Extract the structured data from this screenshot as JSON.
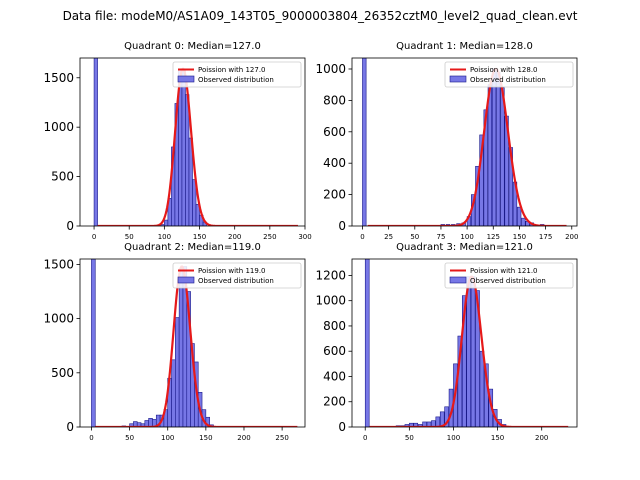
{
  "figure": {
    "title": "Data file: modeM0/AS1A09_143T05_9000003804_26352cztM0_level2_quad_clean.evt"
  },
  "colors": {
    "bar_fill": "#7777e6",
    "bar_edge": "#1a1a8a",
    "fit_line": "#e61919",
    "axes": "#000000"
  },
  "chart_data": [
    {
      "type": "bar",
      "title": "Quadrant 0: Median=127.0",
      "median": 127.0,
      "xlim": [
        -20,
        300
      ],
      "ylim": [
        0,
        1700
      ],
      "xticks": [
        0,
        50,
        100,
        150,
        200,
        250,
        300
      ],
      "yticks": [
        0,
        500,
        1000,
        1500
      ],
      "bin_width": 5,
      "legend": [
        "Poission with 127.0",
        "Observed distribution"
      ],
      "bins": [
        [
          0,
          1700
        ],
        [
          95,
          15
        ],
        [
          100,
          60
        ],
        [
          105,
          280
        ],
        [
          110,
          800
        ],
        [
          115,
          1240
        ],
        [
          120,
          1580
        ],
        [
          125,
          1590
        ],
        [
          130,
          1330
        ],
        [
          135,
          890
        ],
        [
          140,
          470
        ],
        [
          145,
          220
        ],
        [
          150,
          110
        ],
        [
          155,
          40
        ]
      ]
    },
    {
      "type": "bar",
      "title": "Quadrant 1: Median=128.0",
      "median": 128.0,
      "xlim": [
        -10,
        205
      ],
      "ylim": [
        0,
        1070
      ],
      "xticks": [
        0,
        25,
        50,
        75,
        100,
        125,
        150,
        175,
        200
      ],
      "yticks": [
        0,
        200,
        400,
        600,
        800,
        1000
      ],
      "bin_width": 3.5,
      "legend": [
        "Poission with 128.0",
        "Observed distribution"
      ],
      "bins": [
        [
          0,
          1070
        ],
        [
          75,
          10
        ],
        [
          80,
          10
        ],
        [
          85,
          10
        ],
        [
          90,
          15
        ],
        [
          95,
          20
        ],
        [
          100,
          60
        ],
        [
          104,
          200
        ],
        [
          108,
          380
        ],
        [
          112,
          580
        ],
        [
          116,
          740
        ],
        [
          120,
          900
        ],
        [
          124,
          1000
        ],
        [
          128,
          980
        ],
        [
          132,
          880
        ],
        [
          136,
          700
        ],
        [
          140,
          500
        ],
        [
          144,
          280
        ],
        [
          148,
          120
        ],
        [
          152,
          50
        ],
        [
          156,
          30
        ],
        [
          160,
          20
        ],
        [
          170,
          10
        ]
      ]
    },
    {
      "type": "bar",
      "title": "Quadrant 2: Median=119.0",
      "median": 119.0,
      "xlim": [
        -15,
        280
      ],
      "ylim": [
        0,
        1550
      ],
      "xticks": [
        0,
        50,
        100,
        150,
        200,
        250
      ],
      "yticks": [
        0,
        500,
        1000,
        1500
      ],
      "bin_width": 5,
      "legend": [
        "Poission with 119.0",
        "Observed distribution"
      ],
      "bins": [
        [
          0,
          1550
        ],
        [
          40,
          10
        ],
        [
          50,
          30
        ],
        [
          55,
          50
        ],
        [
          60,
          40
        ],
        [
          65,
          30
        ],
        [
          70,
          60
        ],
        [
          75,
          80
        ],
        [
          80,
          70
        ],
        [
          85,
          110
        ],
        [
          90,
          110
        ],
        [
          95,
          160
        ],
        [
          100,
          450
        ],
        [
          105,
          620
        ],
        [
          110,
          1010
        ],
        [
          115,
          1460
        ],
        [
          120,
          1480
        ],
        [
          125,
          1250
        ],
        [
          130,
          770
        ],
        [
          135,
          600
        ],
        [
          140,
          320
        ],
        [
          145,
          160
        ],
        [
          150,
          90
        ],
        [
          155,
          20
        ]
      ]
    },
    {
      "type": "bar",
      "title": "Quadrant 3: Median=121.0",
      "median": 121.0,
      "xlim": [
        -15,
        240
      ],
      "ylim": [
        0,
        1330
      ],
      "xticks": [
        0,
        50,
        100,
        150,
        200
      ],
      "yticks": [
        0,
        200,
        400,
        600,
        800,
        1000,
        1200
      ],
      "bin_width": 4.5,
      "legend": [
        "Poission with 121.0",
        "Observed distribution"
      ],
      "bins": [
        [
          0,
          1330
        ],
        [
          35,
          10
        ],
        [
          40,
          10
        ],
        [
          45,
          20
        ],
        [
          50,
          30
        ],
        [
          55,
          30
        ],
        [
          60,
          20
        ],
        [
          65,
          40
        ],
        [
          70,
          40
        ],
        [
          75,
          50
        ],
        [
          80,
          80
        ],
        [
          85,
          120
        ],
        [
          90,
          160
        ],
        [
          95,
          300
        ],
        [
          100,
          500
        ],
        [
          105,
          720
        ],
        [
          110,
          1040
        ],
        [
          115,
          1190
        ],
        [
          120,
          1190
        ],
        [
          125,
          1080
        ],
        [
          130,
          600
        ],
        [
          135,
          500
        ],
        [
          140,
          300
        ],
        [
          145,
          140
        ],
        [
          150,
          60
        ],
        [
          155,
          20
        ]
      ]
    }
  ]
}
